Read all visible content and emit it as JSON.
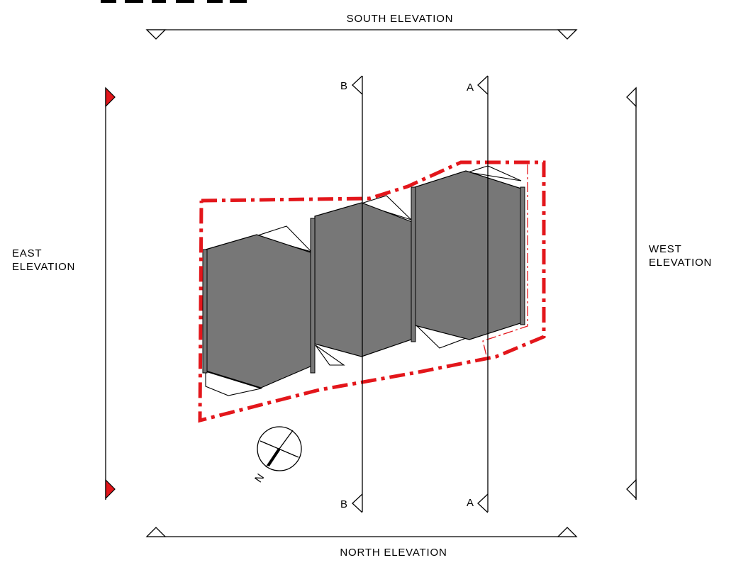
{
  "elevations": {
    "south": "SOUTH ELEVATION",
    "north": "NORTH ELEVATION",
    "east_line1": "EAST",
    "east_line2": "ELEVATION",
    "west_line1": "WEST",
    "west_line2": "ELEVATION"
  },
  "sections": {
    "a": "A",
    "b": "B"
  },
  "north_arrow": {
    "label": "N"
  },
  "colors": {
    "boundary": "#e3161b",
    "building_fill": "#777777",
    "marker_red": "#e3161b"
  }
}
